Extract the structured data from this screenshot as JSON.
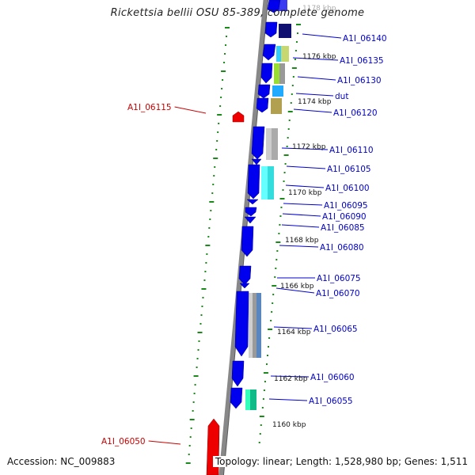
{
  "title": "Rickettsia bellii OSU 85-389, complete genome",
  "footer": {
    "accession": "Accession: NC_009883",
    "summary": "Topology: linear; Length: 1,528,980 bp; Genes: 1,511"
  },
  "colors": {
    "forward_gene": "#0000ee",
    "reverse_gene": "#ee0000",
    "label_forward": "#0000cc",
    "label_reverse": "#cc0000",
    "tick": "#1a8a1a",
    "backbone": "#888888"
  },
  "kbp_labels": [
    "1178 kbp",
    "1176 kbp",
    "1174 kbp",
    "1172 kbp",
    "1170 kbp",
    "1168 kbp",
    "1166 kbp",
    "1164 kbp",
    "1162 kbp",
    "1160 kbp"
  ],
  "genes": [
    {
      "label": "A1I_06140",
      "strand": "forward"
    },
    {
      "label": "A1I_06135",
      "strand": "forward"
    },
    {
      "label": "A1I_06130",
      "strand": "forward"
    },
    {
      "label": "dut",
      "strand": "forward"
    },
    {
      "label": "A1I_06120",
      "strand": "forward"
    },
    {
      "label": "A1I_06115",
      "strand": "reverse"
    },
    {
      "label": "A1I_06110",
      "strand": "forward"
    },
    {
      "label": "A1I_06105",
      "strand": "forward"
    },
    {
      "label": "A1I_06100",
      "strand": "forward"
    },
    {
      "label": "A1I_06095",
      "strand": "forward"
    },
    {
      "label": "A1I_06090",
      "strand": "forward"
    },
    {
      "label": "A1I_06085",
      "strand": "forward"
    },
    {
      "label": "A1I_06080",
      "strand": "forward"
    },
    {
      "label": "A1I_06075",
      "strand": "forward"
    },
    {
      "label": "A1I_06070",
      "strand": "forward"
    },
    {
      "label": "A1I_06065",
      "strand": "forward"
    },
    {
      "label": "A1I_06060",
      "strand": "forward"
    },
    {
      "label": "A1I_06055",
      "strand": "forward"
    },
    {
      "label": "A1I_06050",
      "strand": "reverse"
    }
  ]
}
